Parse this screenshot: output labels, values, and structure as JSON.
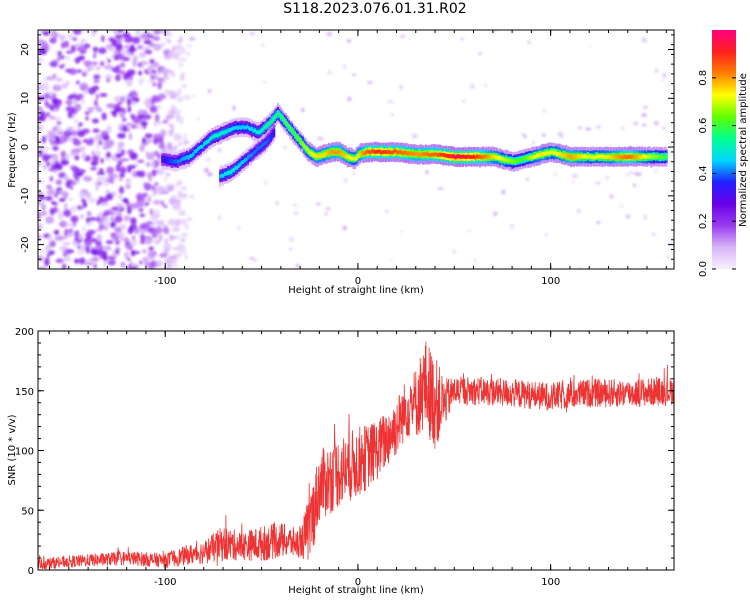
{
  "title": "S118.2023.076.01.31.R02",
  "chart_data": [
    {
      "type": "heatmap",
      "xlabel": "Height of straight line (km)",
      "ylabel": "Frequency (Hz)",
      "xlim": [
        -166,
        164
      ],
      "ylim": [
        -25,
        24
      ],
      "xticks": [
        -100,
        0,
        100
      ],
      "yticks": [
        -20,
        -10,
        0,
        10,
        20
      ],
      "colorbar": {
        "label": "Normalized spectral amplitude",
        "range": [
          0,
          1
        ],
        "ticks": [
          "0.0",
          "0.2",
          "0.4",
          "0.6",
          "0.8"
        ],
        "tick_values": [
          0.0,
          0.2,
          0.4,
          0.6,
          0.8
        ],
        "colors": [
          "#f7f0ff",
          "#d8b4f8",
          "#9a3cf0",
          "#6a00e6",
          "#2020ff",
          "#00d8ff",
          "#00ff90",
          "#60ff00",
          "#ffff00",
          "#ff8000",
          "#ff2020",
          "#ff0080"
        ]
      },
      "ridge": {
        "x": [
          -102,
          -95,
          -88,
          -82,
          -76,
          -70,
          -64,
          -58,
          -52,
          -46,
          -42,
          -38,
          -34,
          -30,
          -26,
          -22,
          -18,
          -14,
          -10,
          -6,
          -2,
          0,
          4,
          10,
          20,
          30,
          40,
          50,
          60,
          70,
          75,
          80,
          85,
          90,
          95,
          100,
          105,
          110,
          120,
          130,
          140,
          150,
          160
        ],
        "y": [
          -2.5,
          -3,
          -2,
          0,
          2,
          3,
          4,
          4,
          3,
          5,
          7,
          5,
          3,
          1,
          -1,
          -2,
          -1.5,
          -1,
          -1,
          -2,
          -2.5,
          -1.5,
          -1,
          -1,
          -1,
          -1.5,
          -1.5,
          -2,
          -2,
          -2,
          -2.5,
          -3,
          -2.5,
          -2,
          -1.5,
          -1,
          -1.5,
          -2,
          -2,
          -2,
          -2,
          -2,
          -2
        ],
        "amplitude": [
          0.35,
          0.4,
          0.45,
          0.45,
          0.5,
          0.5,
          0.45,
          0.45,
          0.5,
          0.55,
          0.55,
          0.6,
          0.6,
          0.65,
          0.7,
          0.75,
          0.75,
          0.8,
          0.8,
          0.75,
          0.7,
          0.75,
          0.85,
          0.9,
          0.85,
          0.8,
          0.85,
          0.95,
          0.9,
          0.75,
          0.7,
          0.65,
          0.6,
          0.7,
          0.75,
          0.7,
          0.75,
          0.8,
          0.7,
          0.75,
          0.85,
          0.7,
          0.6
        ]
      },
      "secondary_ridge": {
        "x": [
          -72,
          -66,
          -60,
          -54,
          -48,
          -44
        ],
        "y": [
          -6,
          -5,
          -3,
          -1,
          1,
          3
        ],
        "amplitude": [
          0.45,
          0.5,
          0.45,
          0.4,
          0.4,
          0.35
        ]
      },
      "noise_region": {
        "x": [
          -166,
          -95
        ],
        "y": [
          -25,
          24
        ],
        "amplitude_max": 0.25
      }
    },
    {
      "type": "line",
      "xlabel": "Height of straight line (km)",
      "ylabel": "SNR (10 * v/v)",
      "xlim": [
        -166,
        164
      ],
      "ylim": [
        0,
        200
      ],
      "xticks": [
        -100,
        0,
        100
      ],
      "yticks": [
        0,
        50,
        100,
        150,
        200
      ],
      "color": "#ee3333",
      "envelope": {
        "x": [
          -166,
          -150,
          -120,
          -100,
          -90,
          -80,
          -70,
          -60,
          -50,
          -40,
          -30,
          -25,
          -20,
          -10,
          0,
          10,
          20,
          25,
          30,
          35,
          40,
          45,
          50,
          60,
          80,
          100,
          120,
          140,
          164
        ],
        "mean": [
          5,
          7,
          10,
          8,
          12,
          15,
          22,
          20,
          22,
          25,
          22,
          35,
          70,
          82,
          90,
          100,
          120,
          135,
          140,
          155,
          140,
          140,
          150,
          150,
          148,
          145,
          148,
          148,
          150
        ],
        "spread": [
          5,
          5,
          6,
          6,
          8,
          10,
          15,
          12,
          15,
          15,
          12,
          30,
          30,
          30,
          30,
          25,
          25,
          25,
          30,
          40,
          40,
          20,
          12,
          12,
          12,
          12,
          12,
          12,
          12
        ]
      }
    }
  ]
}
